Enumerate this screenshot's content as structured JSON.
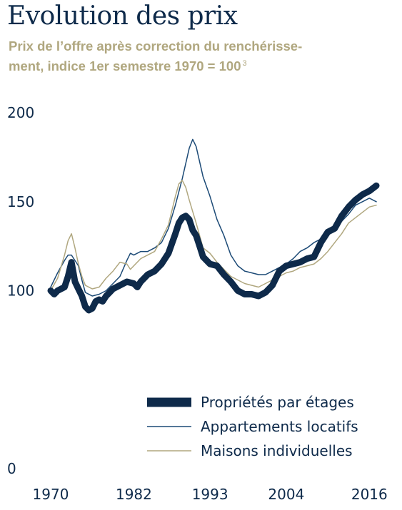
{
  "chart_data": {
    "type": "line",
    "title": "Evolution des prix",
    "subtitle_line1": "Prix de l’offre après correction du renchérisse-",
    "subtitle_line2": "ment, indice 1er semestre 1970 = 100",
    "subtitle_note": "3",
    "xlabel": "",
    "ylabel": "",
    "xlim": [
      1970,
      2017
    ],
    "ylim": [
      0,
      200
    ],
    "x_ticks": [
      "1970",
      "1982",
      "1993",
      "2004",
      "2016"
    ],
    "y_ticks": [
      "0",
      "100",
      "150",
      "200"
    ],
    "grid": false,
    "legend_position": "bottom-right",
    "series": [
      {
        "name": "Propriétés par étages",
        "color": "#0e2a4a",
        "style": "thick",
        "points": [
          [
            1970,
            100
          ],
          [
            1970.5,
            98
          ],
          [
            1971,
            100
          ],
          [
            1972,
            102
          ],
          [
            1972.5,
            108
          ],
          [
            1973,
            116
          ],
          [
            1973.5,
            105
          ],
          [
            1974,
            101
          ],
          [
            1974.5,
            97
          ],
          [
            1975,
            91
          ],
          [
            1975.5,
            89
          ],
          [
            1976,
            90
          ],
          [
            1976.5,
            94
          ],
          [
            1977,
            95
          ],
          [
            1977.5,
            94
          ],
          [
            1978,
            97
          ],
          [
            1978.5,
            99
          ],
          [
            1979,
            101
          ],
          [
            1980,
            103
          ],
          [
            1981,
            105
          ],
          [
            1982,
            104
          ],
          [
            1982.5,
            102
          ],
          [
            1983,
            105
          ],
          [
            1984,
            109
          ],
          [
            1985,
            111
          ],
          [
            1986,
            115
          ],
          [
            1987,
            121
          ],
          [
            1988,
            132
          ],
          [
            1988.5,
            138
          ],
          [
            1989,
            141
          ],
          [
            1989.5,
            142
          ],
          [
            1990,
            140
          ],
          [
            1990.5,
            134
          ],
          [
            1991,
            131
          ],
          [
            1991.5,
            125
          ],
          [
            1992,
            119
          ],
          [
            1993,
            115
          ],
          [
            1994,
            114
          ],
          [
            1995,
            109
          ],
          [
            1996,
            105
          ],
          [
            1997,
            100
          ],
          [
            1998,
            98
          ],
          [
            1999,
            98
          ],
          [
            2000,
            97
          ],
          [
            2001,
            99
          ],
          [
            2002,
            103
          ],
          [
            2003,
            111
          ],
          [
            2004,
            114
          ],
          [
            2005,
            115
          ],
          [
            2006,
            116
          ],
          [
            2007,
            118
          ],
          [
            2008,
            119
          ],
          [
            2009,
            127
          ],
          [
            2010,
            133
          ],
          [
            2011,
            135
          ],
          [
            2012,
            142
          ],
          [
            2013,
            147
          ],
          [
            2014,
            151
          ],
          [
            2015,
            154
          ],
          [
            2016,
            156
          ],
          [
            2017,
            159
          ]
        ]
      },
      {
        "name": "Appartements locatifs",
        "color": "#1c4a76",
        "style": "thin",
        "points": [
          [
            1970,
            102
          ],
          [
            1971,
            110
          ],
          [
            1972,
            117
          ],
          [
            1972.5,
            120
          ],
          [
            1973,
            120
          ],
          [
            1974,
            114
          ],
          [
            1974.5,
            106
          ],
          [
            1975,
            99
          ],
          [
            1976,
            97
          ],
          [
            1977,
            98
          ],
          [
            1978,
            100
          ],
          [
            1979,
            104
          ],
          [
            1980,
            108
          ],
          [
            1981,
            117
          ],
          [
            1981.5,
            121
          ],
          [
            1982,
            120
          ],
          [
            1983,
            122
          ],
          [
            1984,
            122
          ],
          [
            1985,
            124
          ],
          [
            1986,
            127
          ],
          [
            1987,
            135
          ],
          [
            1988,
            148
          ],
          [
            1989,
            163
          ],
          [
            1990,
            180
          ],
          [
            1990.5,
            185
          ],
          [
            1991,
            181
          ],
          [
            1992,
            164
          ],
          [
            1993,
            153
          ],
          [
            1994,
            140
          ],
          [
            1995,
            131
          ],
          [
            1996,
            120
          ],
          [
            1997,
            114
          ],
          [
            1998,
            111
          ],
          [
            1999,
            110
          ],
          [
            2000,
            109
          ],
          [
            2001,
            109
          ],
          [
            2002,
            111
          ],
          [
            2003,
            113
          ],
          [
            2004,
            115
          ],
          [
            2005,
            118
          ],
          [
            2006,
            122
          ],
          [
            2007,
            124
          ],
          [
            2008,
            127
          ],
          [
            2009,
            129
          ],
          [
            2010,
            133
          ],
          [
            2011,
            136
          ],
          [
            2012,
            139
          ],
          [
            2013,
            143
          ],
          [
            2014,
            148
          ],
          [
            2015,
            150
          ],
          [
            2016,
            152
          ],
          [
            2017,
            150
          ]
        ]
      },
      {
        "name": "Maisons individuelles",
        "color": "#b0a77f",
        "style": "thin",
        "points": [
          [
            1970,
            100
          ],
          [
            1971,
            107
          ],
          [
            1972,
            120
          ],
          [
            1972.5,
            128
          ],
          [
            1973,
            132
          ],
          [
            1973.5,
            124
          ],
          [
            1974,
            115
          ],
          [
            1974.5,
            108
          ],
          [
            1975,
            103
          ],
          [
            1976,
            101
          ],
          [
            1977,
            102
          ],
          [
            1978,
            107
          ],
          [
            1979,
            111
          ],
          [
            1980,
            116
          ],
          [
            1981,
            115
          ],
          [
            1981.5,
            112
          ],
          [
            1982,
            114
          ],
          [
            1983,
            118
          ],
          [
            1984,
            120
          ],
          [
            1985,
            122
          ],
          [
            1986,
            129
          ],
          [
            1987,
            137
          ],
          [
            1988,
            153
          ],
          [
            1988.5,
            160
          ],
          [
            1989,
            162
          ],
          [
            1989.5,
            158
          ],
          [
            1990,
            151
          ],
          [
            1991,
            138
          ],
          [
            1992,
            124
          ],
          [
            1993,
            121
          ],
          [
            1994,
            116
          ],
          [
            1995,
            112
          ],
          [
            1996,
            108
          ],
          [
            1997,
            106
          ],
          [
            1998,
            104
          ],
          [
            1999,
            103
          ],
          [
            2000,
            102
          ],
          [
            2001,
            104
          ],
          [
            2002,
            106
          ],
          [
            2003,
            108
          ],
          [
            2004,
            110
          ],
          [
            2005,
            111
          ],
          [
            2006,
            113
          ],
          [
            2007,
            114
          ],
          [
            2008,
            115
          ],
          [
            2009,
            118
          ],
          [
            2010,
            122
          ],
          [
            2011,
            127
          ],
          [
            2012,
            132
          ],
          [
            2013,
            138
          ],
          [
            2014,
            141
          ],
          [
            2015,
            144
          ],
          [
            2016,
            147
          ],
          [
            2017,
            148
          ]
        ]
      }
    ]
  }
}
